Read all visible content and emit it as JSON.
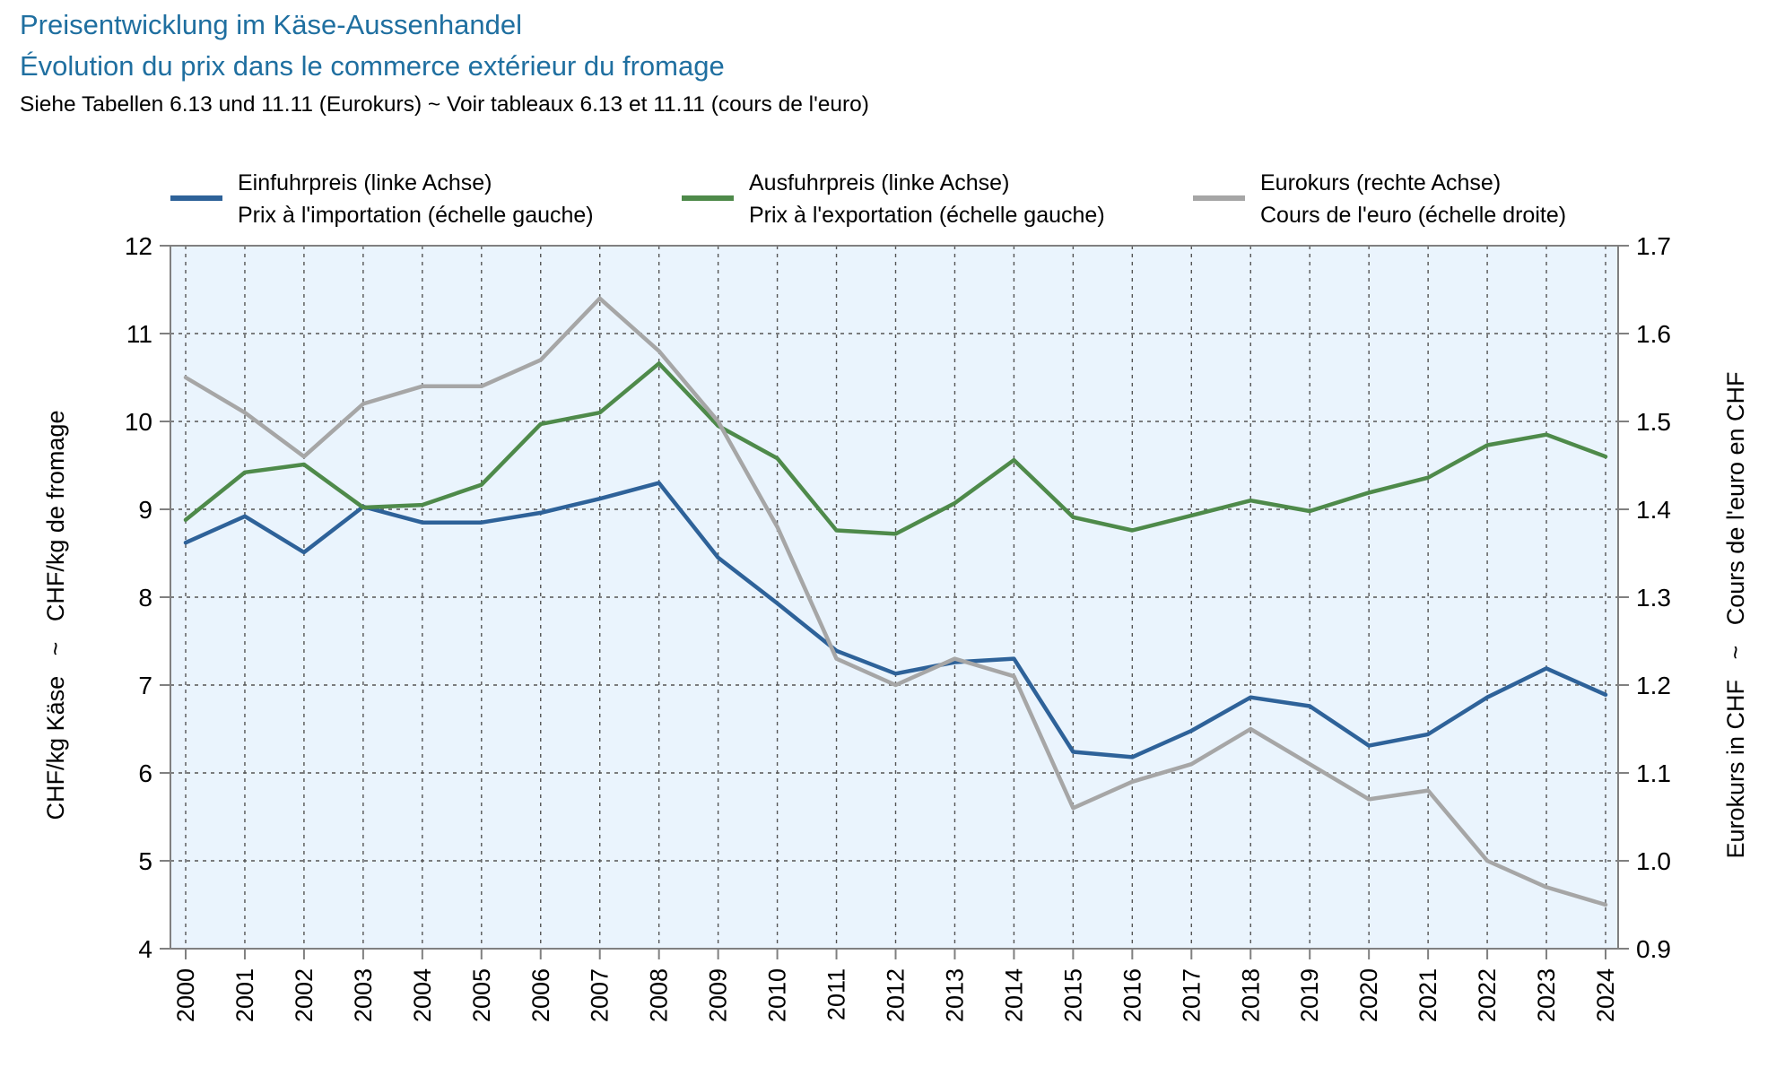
{
  "header": {
    "title_de": "Preisentwicklung im Käse-Aussenhandel",
    "title_fr": "Évolution du prix dans le commerce extérieur du fromage",
    "subtitle": "Siehe Tabellen 6.13 und 11.11 (Eurokurs)   ~   Voir tableaux 6.13 et 11.11 (cours de l'euro)"
  },
  "chart_data": {
    "type": "line",
    "x": [
      2000,
      2001,
      2002,
      2003,
      2004,
      2005,
      2006,
      2007,
      2008,
      2009,
      2010,
      2011,
      2012,
      2013,
      2014,
      2015,
      2016,
      2017,
      2018,
      2019,
      2020,
      2021,
      2022,
      2023,
      2024
    ],
    "x_tick_labels": [
      "2000",
      "2001",
      "2002",
      "2003",
      "2004",
      "2005",
      "2006",
      "2007",
      "2008",
      "2009",
      "2010",
      "2011",
      "2012",
      "2013",
      "2014",
      "2015",
      "2016",
      "2017",
      "2018",
      "2019",
      "2020",
      "2021",
      "2022",
      "2023",
      "2024"
    ],
    "ylim_left": [
      4,
      12
    ],
    "yticks_left": [
      "4",
      "5",
      "6",
      "7",
      "8",
      "9",
      "10",
      "11",
      "12"
    ],
    "ylim_right": [
      0.9,
      1.7
    ],
    "yticks_right": [
      "0.9",
      "1.0",
      "1.1",
      "1.2",
      "1.3",
      "1.4",
      "1.5",
      "1.6",
      "1.7"
    ],
    "ylabel_left": "CHF/kg Käse   ~   CHF/kg de fromage",
    "ylabel_right": "Eurokurs in CHF   ~   Cours de l'euro en CHF",
    "grid": true,
    "legend_position": "top",
    "series": [
      {
        "name": "Einfuhrpreis (linke Achse)",
        "name_fr": "Prix à l'importation (échelle gauche)",
        "axis": "left",
        "color": "#2e6299",
        "values": [
          8.62,
          8.92,
          8.51,
          9.03,
          8.85,
          8.85,
          8.96,
          9.12,
          9.3,
          8.45,
          7.93,
          7.39,
          7.13,
          7.26,
          7.3,
          6.24,
          6.18,
          6.48,
          6.86,
          6.76,
          6.31,
          6.44,
          6.86,
          7.19,
          6.89
        ]
      },
      {
        "name": "Ausfuhrpreis (linke Achse)",
        "name_fr": "Prix à l'exportation (échelle gauche)",
        "axis": "left",
        "color": "#4e8a4a",
        "values": [
          8.88,
          9.42,
          9.51,
          9.02,
          9.05,
          9.28,
          9.97,
          10.1,
          10.66,
          9.95,
          9.58,
          8.76,
          8.72,
          9.07,
          9.56,
          8.91,
          8.76,
          8.93,
          9.1,
          8.98,
          9.19,
          9.36,
          9.73,
          9.85,
          9.6
        ]
      },
      {
        "name": "Eurokurs (rechte Achse)",
        "name_fr": "Cours de l'euro (échelle droite)",
        "axis": "right",
        "color": "#a6a6a6",
        "values": [
          1.55,
          1.51,
          1.46,
          1.52,
          1.54,
          1.54,
          1.57,
          1.64,
          1.58,
          1.5,
          1.38,
          1.23,
          1.2,
          1.23,
          1.21,
          1.06,
          1.09,
          1.11,
          1.15,
          1.11,
          1.07,
          1.08,
          1.0,
          0.97,
          0.95
        ]
      }
    ]
  }
}
